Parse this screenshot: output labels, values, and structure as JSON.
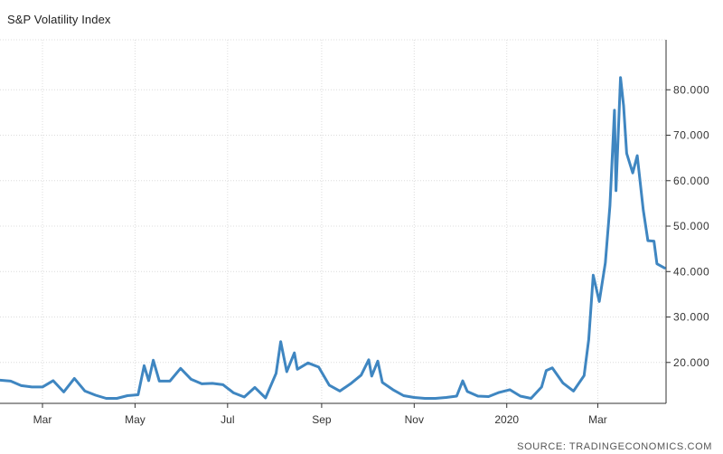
{
  "title": "S&P Volatility Index",
  "source": "SOURCE: TRADINGECONOMICS.COM",
  "chart_data": {
    "type": "line",
    "title": "S&P Volatility Index",
    "xlabel": "",
    "ylabel": "",
    "x_tick_labels": [
      "Mar",
      "May",
      "Jul",
      "Sep",
      "Nov",
      "2020",
      "Mar"
    ],
    "x_tick_dates": [
      "2019-03-01",
      "2019-05-01",
      "2019-07-01",
      "2019-09-01",
      "2019-11-01",
      "2020-01-01",
      "2020-03-01"
    ],
    "x_range": [
      "2019-02-01",
      "2020-04-15"
    ],
    "y_ticks": [
      20,
      30,
      40,
      50,
      60,
      70,
      80
    ],
    "y_tick_labels": [
      "20.000",
      "30.000",
      "40.000",
      "50.000",
      "60.000",
      "70.000",
      "80.000"
    ],
    "ylim": [
      11,
      91
    ],
    "grid": true,
    "y_axis_position": "right",
    "colors": {
      "line": "#3f86c1",
      "grid": "#dcdcdc",
      "axis": "#333333"
    },
    "series": [
      {
        "values": [
          [
            "2019-02-01",
            16.1
          ],
          [
            "2019-02-08",
            15.9
          ],
          [
            "2019-02-15",
            14.9
          ],
          [
            "2019-02-22",
            14.6
          ],
          [
            "2019-03-01",
            14.6
          ],
          [
            "2019-03-08",
            16.0
          ],
          [
            "2019-03-15",
            13.5
          ],
          [
            "2019-03-22",
            16.5
          ],
          [
            "2019-03-29",
            13.7
          ],
          [
            "2019-04-05",
            12.8
          ],
          [
            "2019-04-12",
            12.1
          ],
          [
            "2019-04-19",
            12.1
          ],
          [
            "2019-04-26",
            12.7
          ],
          [
            "2019-05-03",
            12.9
          ],
          [
            "2019-05-07",
            19.3
          ],
          [
            "2019-05-10",
            16.0
          ],
          [
            "2019-05-13",
            20.5
          ],
          [
            "2019-05-17",
            15.9
          ],
          [
            "2019-05-24",
            15.9
          ],
          [
            "2019-05-31",
            18.7
          ],
          [
            "2019-06-07",
            16.3
          ],
          [
            "2019-06-14",
            15.3
          ],
          [
            "2019-06-21",
            15.4
          ],
          [
            "2019-06-28",
            15.1
          ],
          [
            "2019-07-05",
            13.3
          ],
          [
            "2019-07-12",
            12.4
          ],
          [
            "2019-07-19",
            14.5
          ],
          [
            "2019-07-26",
            12.2
          ],
          [
            "2019-08-02",
            17.6
          ],
          [
            "2019-08-05",
            24.6
          ],
          [
            "2019-08-09",
            17.97
          ],
          [
            "2019-08-14",
            22.1
          ],
          [
            "2019-08-16",
            18.5
          ],
          [
            "2019-08-23",
            19.9
          ],
          [
            "2019-08-30",
            18.98
          ],
          [
            "2019-09-06",
            15.0
          ],
          [
            "2019-09-13",
            13.7
          ],
          [
            "2019-09-20",
            15.3
          ],
          [
            "2019-09-27",
            17.2
          ],
          [
            "2019-10-02",
            20.6
          ],
          [
            "2019-10-04",
            17.0
          ],
          [
            "2019-10-08",
            20.3
          ],
          [
            "2019-10-11",
            15.6
          ],
          [
            "2019-10-18",
            14.0
          ],
          [
            "2019-10-25",
            12.7
          ],
          [
            "2019-11-01",
            12.3
          ],
          [
            "2019-11-08",
            12.1
          ],
          [
            "2019-11-15",
            12.1
          ],
          [
            "2019-11-22",
            12.3
          ],
          [
            "2019-11-29",
            12.6
          ],
          [
            "2019-12-03",
            15.96
          ],
          [
            "2019-12-06",
            13.6
          ],
          [
            "2019-12-13",
            12.6
          ],
          [
            "2019-12-20",
            12.5
          ],
          [
            "2019-12-27",
            13.4
          ],
          [
            "2020-01-03",
            14.0
          ],
          [
            "2020-01-10",
            12.6
          ],
          [
            "2020-01-17",
            12.1
          ],
          [
            "2020-01-24",
            14.6
          ],
          [
            "2020-01-27",
            18.2
          ],
          [
            "2020-01-31",
            18.8
          ],
          [
            "2020-02-07",
            15.5
          ],
          [
            "2020-02-14",
            13.7
          ],
          [
            "2020-02-21",
            17.1
          ],
          [
            "2020-02-24",
            25.0
          ],
          [
            "2020-02-27",
            39.2
          ],
          [
            "2020-03-02",
            33.4
          ],
          [
            "2020-03-06",
            41.9
          ],
          [
            "2020-03-09",
            54.5
          ],
          [
            "2020-03-12",
            75.5
          ],
          [
            "2020-03-13",
            57.8
          ],
          [
            "2020-03-16",
            82.7
          ],
          [
            "2020-03-18",
            76.5
          ],
          [
            "2020-03-20",
            66.0
          ],
          [
            "2020-03-24",
            61.7
          ],
          [
            "2020-03-27",
            65.5
          ],
          [
            "2020-03-31",
            53.5
          ],
          [
            "2020-04-03",
            46.8
          ],
          [
            "2020-04-07",
            46.7
          ],
          [
            "2020-04-09",
            41.7
          ],
          [
            "2020-04-14",
            40.8
          ]
        ]
      }
    ]
  }
}
